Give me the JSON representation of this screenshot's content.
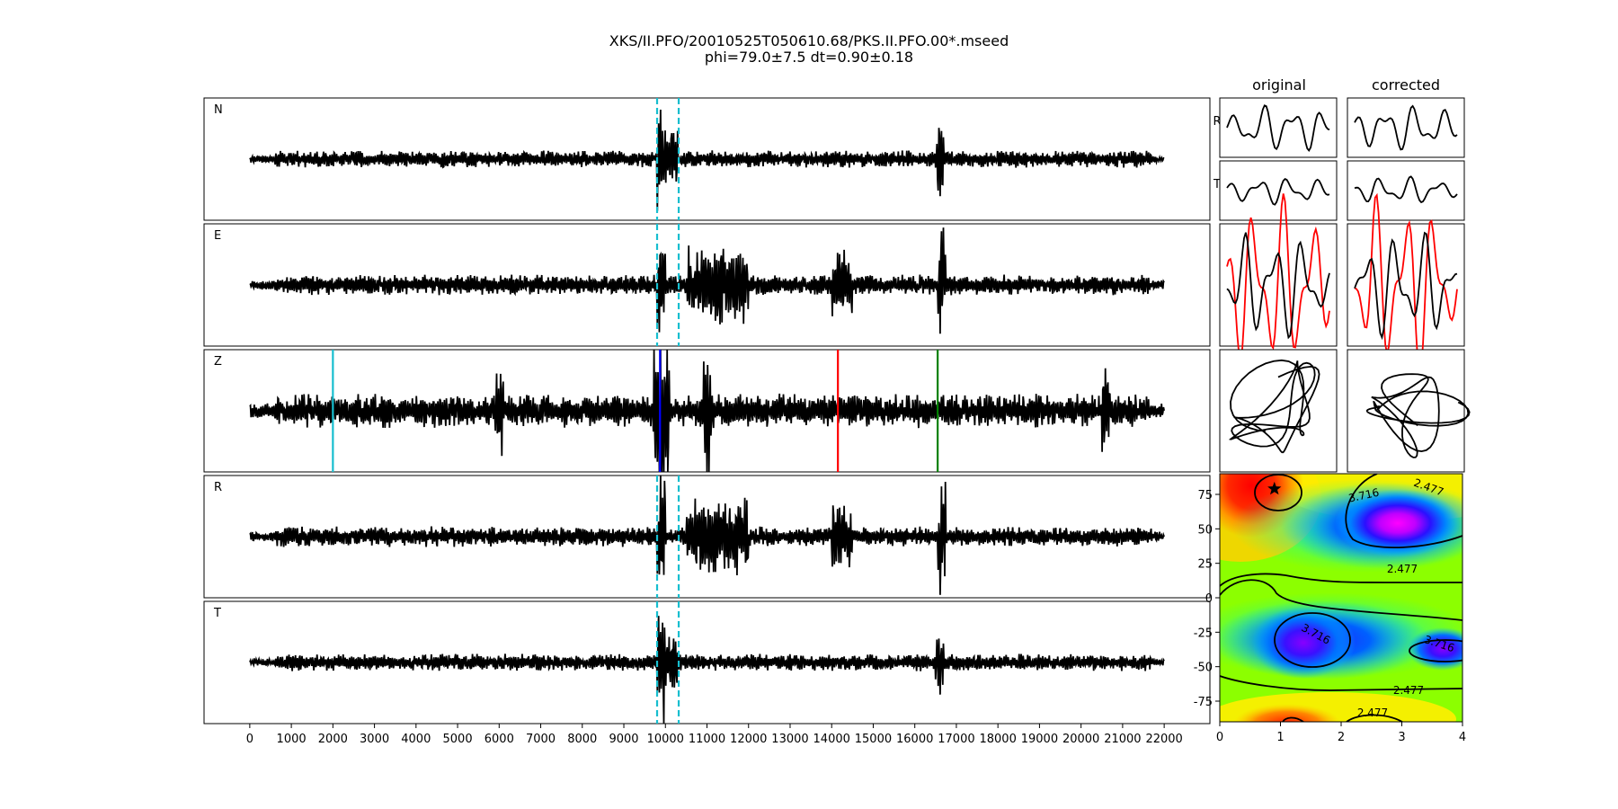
{
  "figure": {
    "title_line1": "XKS/II.PFO/20010525T050610.68/PKS.II.PFO.00*.mseed",
    "title_line2": "phi=79.0±7.5 dt=0.90±0.18",
    "col_original": "original",
    "col_corrected": "corrected",
    "small_row_labels": [
      "R",
      "T"
    ]
  },
  "chart_data": [
    {
      "type": "line",
      "name": "waveform-traces",
      "channels": [
        "N",
        "E",
        "Z",
        "R",
        "T"
      ],
      "x_ticks": [
        0,
        1000,
        2000,
        3000,
        4000,
        5000,
        6000,
        7000,
        8000,
        9000,
        10000,
        11000,
        12000,
        13000,
        14000,
        15000,
        16000,
        17000,
        18000,
        19000,
        20000,
        21000,
        22000
      ],
      "xlim": [
        -1100,
        23100
      ],
      "trace_range": [
        0,
        22000
      ],
      "window_lines": {
        "x": [
          9800,
          10320
        ],
        "color": "#17becf",
        "style": "dashed",
        "channels": [
          "N",
          "E",
          "R",
          "T"
        ]
      },
      "phase_markers_Z": [
        {
          "x": 2000,
          "color": "#17becf"
        },
        {
          "x": 9870,
          "color": "#0000ff"
        },
        {
          "x": 14150,
          "color": "#ff0000"
        },
        {
          "x": 16550,
          "color": "#008000"
        }
      ],
      "colors": {
        "trace": "#000000",
        "window": "#17becf"
      }
    },
    {
      "type": "line",
      "name": "particle-motion-panels",
      "columns": [
        "original",
        "corrected"
      ],
      "rows": [
        "R",
        "T",
        "overlay",
        "hodogram"
      ],
      "colors": {
        "main": "#000000",
        "overlay": "#ff0000"
      }
    },
    {
      "type": "heatmap",
      "name": "error-surface",
      "x_ticks": [
        0,
        1,
        2,
        3,
        4
      ],
      "y_ticks": [
        75,
        50,
        25,
        0,
        -25,
        -50,
        -75
      ],
      "xlim": [
        0,
        4
      ],
      "ylim": [
        -90,
        90
      ],
      "best": {
        "x": 0.9,
        "y": 79.0
      },
      "contour_labels": [
        "2.477",
        "3.716",
        "2.477",
        "3.716",
        "3.716",
        "2.477",
        "2.477"
      ],
      "colormap": "rainbow"
    }
  ]
}
